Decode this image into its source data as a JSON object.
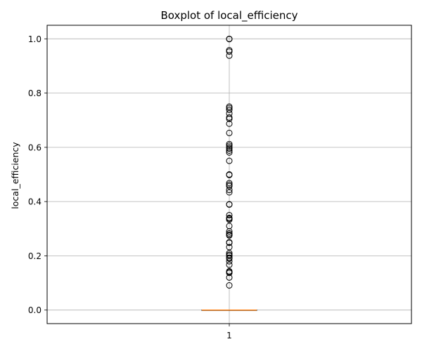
{
  "chart_data": {
    "type": "boxplot",
    "title": "Boxplot of local_efficiency",
    "xlabel": "",
    "ylabel": "local_efficiency",
    "x_tick_labels": [
      "1"
    ],
    "y_ticks": [
      0.0,
      0.2,
      0.4,
      0.6,
      0.8,
      1.0
    ],
    "y_tick_labels": [
      "0.0",
      "0.2",
      "0.4",
      "0.6",
      "0.8",
      "1.0"
    ],
    "ylim": [
      -0.05,
      1.05
    ],
    "grid": true,
    "box": {
      "category": "1",
      "min": 0.0,
      "q1": 0.0,
      "median": 0.0,
      "q3": 0.0,
      "max": 0.0
    },
    "outliers": [
      1.0,
      0.999,
      0.958,
      0.953,
      0.938,
      0.75,
      0.745,
      0.738,
      0.725,
      0.71,
      0.705,
      0.687,
      0.653,
      0.612,
      0.606,
      0.6,
      0.595,
      0.588,
      0.581,
      0.55,
      0.5,
      0.498,
      0.468,
      0.462,
      0.457,
      0.443,
      0.434,
      0.39,
      0.389,
      0.35,
      0.34,
      0.337,
      0.333,
      0.31,
      0.29,
      0.283,
      0.278,
      0.275,
      0.25,
      0.248,
      0.232,
      0.21,
      0.204,
      0.2,
      0.193,
      0.19,
      0.18,
      0.167,
      0.143,
      0.14,
      0.137,
      0.12,
      0.091
    ],
    "colors": {
      "median": "#ff7f0e",
      "box": "#000000",
      "grid": "#b0b0b0",
      "outlier_edge": "#000000"
    }
  }
}
